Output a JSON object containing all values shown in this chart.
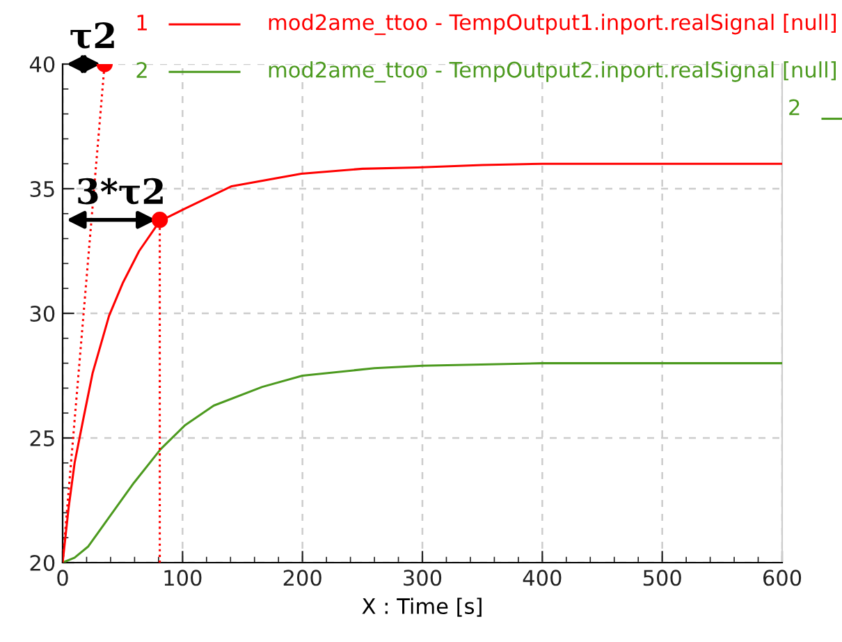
{
  "chart_data": {
    "type": "line",
    "xlabel": "X : Time [s]",
    "xlim": [
      0,
      600
    ],
    "xticks": [
      0,
      100,
      200,
      300,
      400,
      500,
      600
    ],
    "ylim": [
      20,
      40
    ],
    "yticks": [
      20,
      25,
      30,
      35,
      40
    ],
    "grid": true,
    "legend": "top right",
    "line_style": "solid",
    "series": [
      {
        "name": "mod2ame_ttoo - TempOutput1.inport.realSignal [null]",
        "color": "#ff0000",
        "x": [
          0,
          5,
          10,
          17.4,
          25,
          38.7,
          50,
          63.8,
          81,
          102,
          141,
          199,
          250,
          296,
          350,
          400,
          500,
          600
        ],
        "values": [
          20,
          22.2,
          24.0,
          25.8,
          27.6,
          29.9,
          31.2,
          32.5,
          33.7,
          34.2,
          35.1,
          35.6,
          35.8,
          35.85,
          35.95,
          36.0,
          36.0,
          36.0
        ]
      },
      {
        "name": "mod2ame_ttoo - TempOutput2.inport.realSignal [null]",
        "color": "#4c9a1f",
        "x": [
          0,
          10,
          21.4,
          37,
          59.4,
          81.7,
          101.8,
          126,
          166.5,
          200,
          260,
          300,
          400,
          500,
          600
        ],
        "values": [
          20,
          20.2,
          20.65,
          21.7,
          23.2,
          24.55,
          25.5,
          26.3,
          27.05,
          27.5,
          27.8,
          27.9,
          28.0,
          28.0,
          28.0
        ]
      },
      {
        "color": "#ff0000",
        "line_style": "dotted",
        "x": [
          0,
          35
        ],
        "values": [
          20,
          40
        ]
      },
      {
        "color": "#ff0000",
        "line_style": "dotted",
        "x": [
          81,
          81
        ],
        "values": [
          20,
          33.75
        ]
      },
      {
        "type": "scatter",
        "marker": "circle",
        "color": "#ff0000",
        "x": [
          35,
          81
        ],
        "values": [
          40,
          33.75
        ]
      }
    ],
    "annotations": [
      "1",
      "2",
      "2",
      {
        "text": "τ2",
        "x": 35,
        "y": 40
      },
      {
        "text": "3*τ2",
        "x": 81,
        "y": 33.75
      }
    ]
  }
}
